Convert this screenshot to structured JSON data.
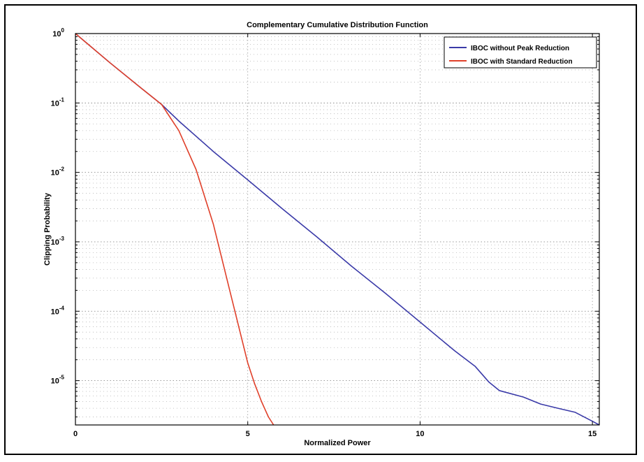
{
  "chart_data": {
    "type": "line",
    "title": "Complementary Cumulative Distribution Function",
    "xlabel": "Normalized Power",
    "ylabel": "Clipping Probability",
    "xlim": [
      0,
      15.2
    ],
    "ylim": [
      2.3e-06,
      1
    ],
    "yscale": "log",
    "grid": true,
    "legend_position": "top-right",
    "x_ticks": [
      {
        "value": 0,
        "label": "0"
      },
      {
        "value": 5,
        "label": "5"
      },
      {
        "value": 10,
        "label": "10"
      },
      {
        "value": 15,
        "label": "15"
      }
    ],
    "y_ticks": [
      {
        "value": 1,
        "base": "10",
        "exp": "0"
      },
      {
        "value": 0.1,
        "base": "10",
        "exp": "-1"
      },
      {
        "value": 0.01,
        "base": "10",
        "exp": "-2"
      },
      {
        "value": 0.001,
        "base": "10",
        "exp": "-3"
      },
      {
        "value": 0.0001,
        "base": "10",
        "exp": "-4"
      },
      {
        "value": 1e-05,
        "base": "10",
        "exp": "-5"
      }
    ],
    "series": [
      {
        "name": "IBOC without Peak Reduction",
        "color": "#3a3aa8",
        "x": [
          0,
          1,
          2,
          2.5,
          3,
          4,
          5,
          6,
          7,
          8,
          9,
          10,
          11,
          11.6,
          12,
          12.3,
          13,
          13.5,
          14,
          14.5,
          15,
          15.2
        ],
        "y": [
          1,
          0.38,
          0.15,
          0.095,
          0.055,
          0.02,
          0.0078,
          0.003,
          0.00118,
          0.00045,
          0.00018,
          7e-05,
          2.7e-05,
          1.6e-05,
          9.5e-06,
          7.2e-06,
          5.8e-06,
          4.6e-06,
          4e-06,
          3.5e-06,
          2.6e-06,
          2.3e-06
        ]
      },
      {
        "name": "IBOC with Standard Reduction",
        "color": "#e0402a",
        "x": [
          0,
          1,
          2,
          2.5,
          3,
          3.5,
          4,
          4.5,
          5,
          5.2,
          5.4,
          5.6,
          5.75
        ],
        "y": [
          1,
          0.38,
          0.15,
          0.095,
          0.04,
          0.011,
          0.0018,
          0.00018,
          1.8e-05,
          9e-06,
          5e-06,
          3e-06,
          2.3e-06
        ]
      }
    ]
  }
}
